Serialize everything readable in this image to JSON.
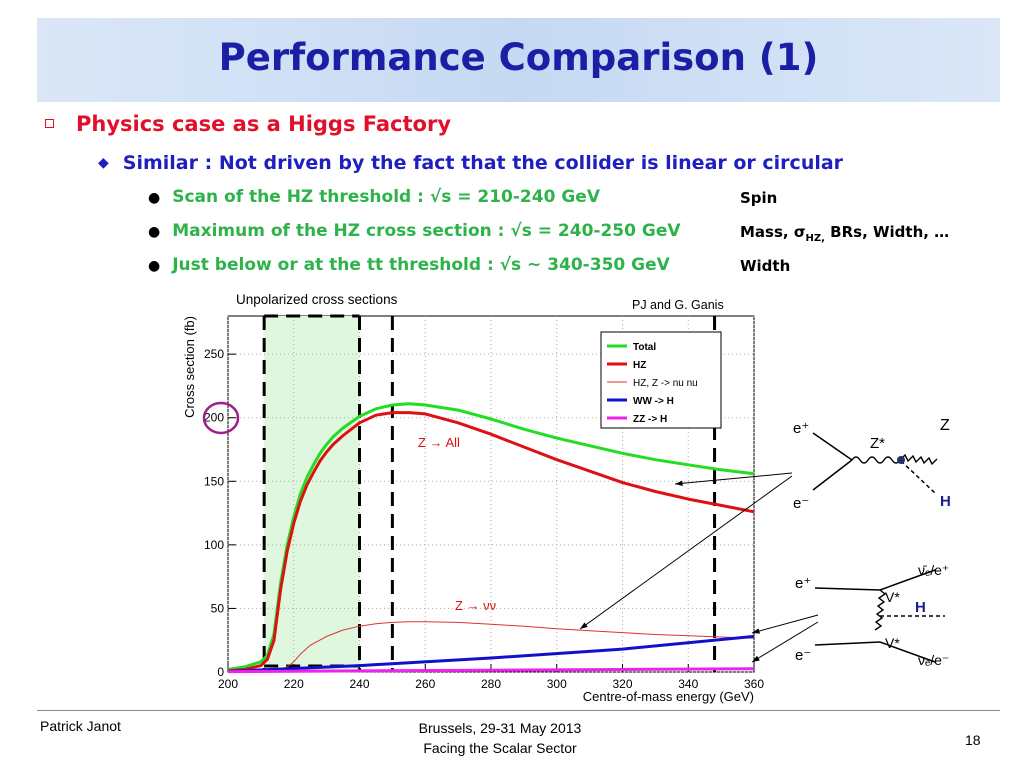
{
  "slide": {
    "title": "Performance Comparison (1)",
    "bullet1": "Physics case as a Higgs Factory",
    "bullet2": "Similar : Not driven by the fact that the collider is linear or circular",
    "bullets3": [
      {
        "text": "Scan of the HZ threshold : √s = 210-240 GeV",
        "right": "Spin"
      },
      {
        "text": "Maximum of the HZ cross section : √s = 240-250 GeV",
        "right_pre": "Mass, σ",
        "right_sub": "HZ,",
        "right_post": " BRs, Width, …"
      },
      {
        "text": "Just below or at the tt threshold : √s ~ 340-350 GeV",
        "right": "Width"
      }
    ],
    "polarized_note": "Unpolarized cross sections",
    "credit": "PJ and G. Ganis"
  },
  "footer": {
    "author": "Patrick Janot",
    "line1": "Brussels, 29-31 May 2013",
    "line2": "Facing the Scalar Sector",
    "page": "18"
  },
  "chart_data": {
    "type": "line",
    "xlabel": "Centre-of-mass energy (GeV)",
    "ylabel": "Cross section (fb)",
    "xlim": [
      200,
      360
    ],
    "ylim": [
      0,
      280
    ],
    "xticks": [
      200,
      220,
      240,
      260,
      280,
      300,
      320,
      340,
      360
    ],
    "yticks": [
      0,
      50,
      100,
      150,
      200,
      250
    ],
    "grid": true,
    "legend_position": "top-right",
    "annotations": [
      "Z → All",
      "Z → νν"
    ],
    "vertical_lines": [
      211,
      240,
      250,
      348
    ],
    "shaded_region": [
      211,
      240
    ],
    "series": [
      {
        "name": "Total",
        "color": "#22dd22",
        "x": [
          200,
          205,
          210,
          212,
          214,
          216,
          218,
          220,
          222,
          224,
          226,
          228,
          230,
          232,
          235,
          240,
          245,
          250,
          255,
          260,
          270,
          280,
          290,
          300,
          310,
          320,
          330,
          340,
          350,
          360
        ],
        "y": [
          2,
          4,
          8,
          13,
          30,
          70,
          100,
          122,
          140,
          153,
          163,
          172,
          179,
          185,
          192,
          201,
          207,
          210,
          211,
          210,
          206,
          199,
          191,
          184,
          178,
          172,
          167,
          163,
          159,
          156
        ]
      },
      {
        "name": "HZ",
        "color": "#dd1111",
        "x": [
          200,
          205,
          210,
          212,
          214,
          216,
          218,
          220,
          222,
          224,
          226,
          228,
          230,
          232,
          235,
          240,
          245,
          250,
          255,
          260,
          270,
          280,
          290,
          300,
          310,
          320,
          330,
          340,
          350,
          360
        ],
        "y": [
          1,
          2,
          5,
          10,
          25,
          65,
          95,
          117,
          134,
          147,
          157,
          166,
          173,
          179,
          186,
          196,
          202,
          204,
          204,
          203,
          196,
          187,
          177,
          167,
          158,
          149,
          142,
          136,
          131,
          126
        ]
      },
      {
        "name": "HZ, Z -> nu nu",
        "color": "#dd3333",
        "x": [
          215,
          218,
          220,
          222,
          225,
          230,
          235,
          240,
          245,
          250,
          255,
          260,
          270,
          280,
          290,
          300,
          310,
          320,
          330,
          340,
          350,
          360
        ],
        "y": [
          1,
          4,
          8,
          14,
          21,
          28,
          33,
          36,
          38,
          39,
          39.5,
          39.5,
          39,
          37.5,
          36,
          34,
          32.5,
          31,
          29.5,
          28.5,
          27.5,
          26.5
        ]
      },
      {
        "name": "WW -> H",
        "color": "#1111cc",
        "x": [
          200,
          240,
          280,
          320,
          360
        ],
        "y": [
          0.5,
          5,
          11,
          18,
          28
        ]
      },
      {
        "name": "ZZ -> H",
        "color": "#ee22ee",
        "x": [
          200,
          360
        ],
        "y": [
          0.3,
          2.5
        ]
      }
    ]
  },
  "diagrams": {
    "hz": {
      "e_plus": "e⁺",
      "e_minus": "e⁻",
      "z_star": "Z*",
      "z": "Z",
      "h": "H"
    },
    "ww": {
      "e_plus": "e⁺",
      "e_minus": "e⁻",
      "v_top": "V*",
      "v_bot": "V*",
      "h": "H",
      "out_top": "ν̄ₑ/e⁺",
      "out_bot": "νₑ/e⁻"
    }
  }
}
